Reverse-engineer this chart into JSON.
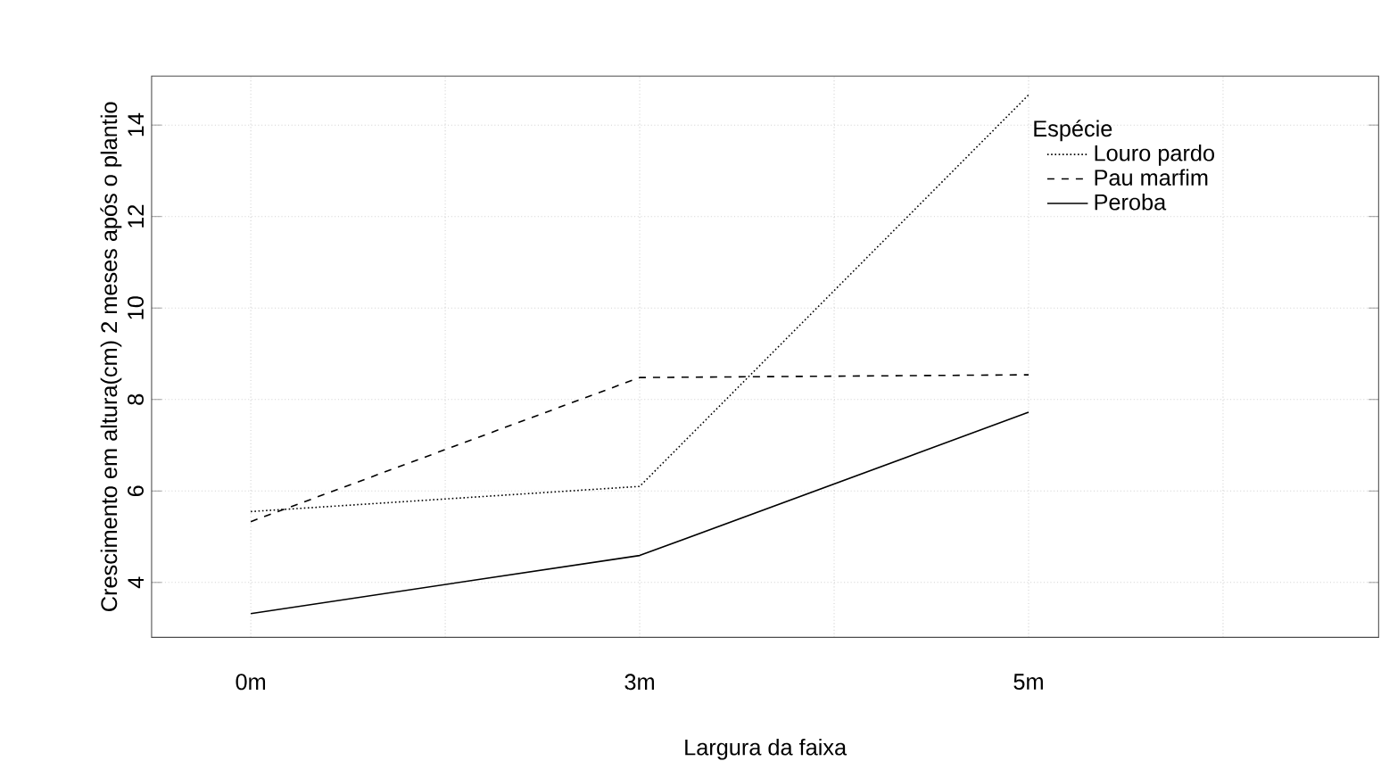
{
  "chart_data": {
    "type": "line",
    "xlabel": "Largura da faixa",
    "ylabel": "Crescimento em altura(cm) 2 meses após o plantio",
    "legend_title": "Espécie",
    "categories": [
      "0m",
      "3m",
      "5m"
    ],
    "series": [
      {
        "name": "Louro pardo",
        "color": "#000000",
        "line_style": "dotted",
        "values": [
          5.55,
          6.1,
          14.66
        ]
      },
      {
        "name": "Pau marfim",
        "color": "#000000",
        "line_style": "dashed",
        "values": [
          5.33,
          8.48,
          8.54
        ]
      },
      {
        "name": "Peroba",
        "color": "#000000",
        "line_style": "solid",
        "values": [
          3.32,
          4.59,
          7.72
        ]
      }
    ],
    "ylim": [
      2.8,
      15.07
    ],
    "yticks": [
      4,
      6,
      8,
      10,
      12,
      14
    ],
    "grid": true,
    "legend": "top right"
  }
}
